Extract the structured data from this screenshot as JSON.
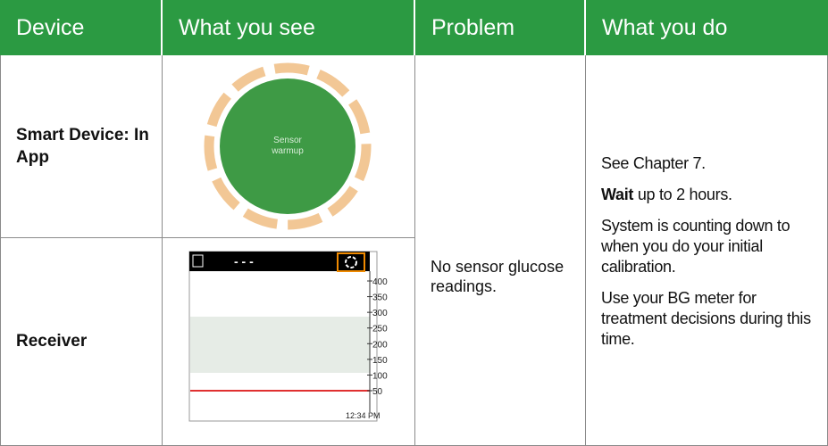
{
  "table": {
    "header": [
      "Device",
      "What you see",
      "Problem",
      "What you do"
    ],
    "rows": [
      {
        "device": "Smart Device: In App",
        "screen": {
          "label": "Sensor warmup"
        }
      },
      {
        "device": "Receiver",
        "screen": {
          "dashes": "- - -",
          "scale": [
            "400",
            "350",
            "300",
            "250",
            "200",
            "150",
            "100",
            "50"
          ],
          "time": "12:34 PM"
        }
      }
    ],
    "problem": "No sensor glucose readings.",
    "actions": [
      {
        "text": "See Chapter 7."
      },
      {
        "bold": "Wait",
        "text": "up to 2 hours."
      },
      {
        "text": "System is counting down to when you do your initial calibration."
      },
      {
        "text": "Use your BG meter for treatment decisions during this time."
      }
    ]
  }
}
